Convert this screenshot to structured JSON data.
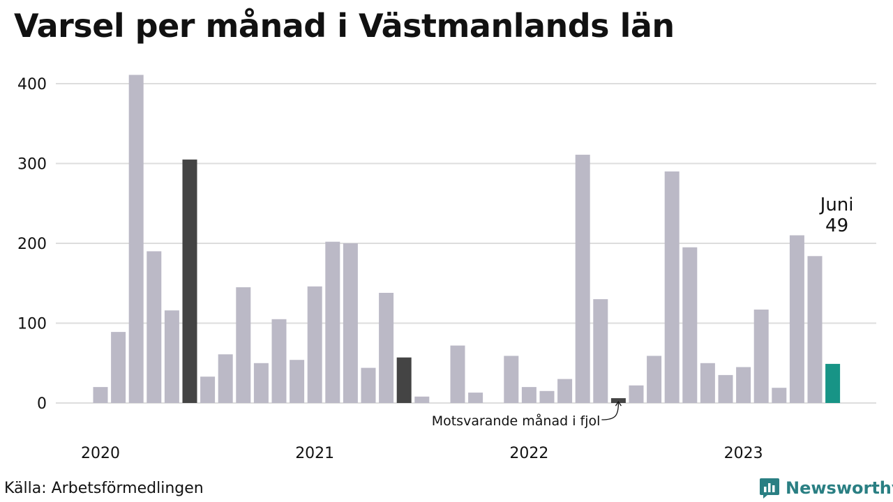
{
  "title": "Varsel per månad i Västmanlands län",
  "source": "Källa: Arbetsförmedlingen",
  "brand": {
    "name": "Newsworthy",
    "icon": "newsworthy-logo-icon",
    "color": "#2a7f83"
  },
  "chart_data": {
    "type": "bar",
    "title": "Varsel per månad i Västmanlands län",
    "xlabel": "",
    "ylabel": "",
    "ylim": [
      0,
      420
    ],
    "yticks": [
      "0",
      "100",
      "200",
      "300",
      "400"
    ],
    "grid": true,
    "x_year_labels": [
      "2020",
      "2021",
      "2022",
      "2023"
    ],
    "categories": [
      "2020-01",
      "2020-02",
      "2020-03",
      "2020-04",
      "2020-05",
      "2020-06",
      "2020-07",
      "2020-08",
      "2020-09",
      "2020-10",
      "2020-11",
      "2020-12",
      "2021-01",
      "2021-02",
      "2021-03",
      "2021-04",
      "2021-05",
      "2021-06",
      "2021-07",
      "2021-08",
      "2021-09",
      "2021-10",
      "2021-11",
      "2021-12",
      "2022-01",
      "2022-02",
      "2022-03",
      "2022-04",
      "2022-05",
      "2022-06",
      "2022-07",
      "2022-08",
      "2022-09",
      "2022-10",
      "2022-11",
      "2022-12",
      "2023-01",
      "2023-02",
      "2023-03",
      "2023-04",
      "2023-05",
      "2023-06"
    ],
    "values": [
      20,
      89,
      411,
      190,
      116,
      305,
      33,
      61,
      145,
      50,
      105,
      54,
      146,
      202,
      200,
      44,
      138,
      57,
      8,
      0,
      72,
      13,
      0,
      59,
      20,
      15,
      30,
      311,
      130,
      6,
      22,
      59,
      290,
      195,
      50,
      35,
      45,
      117,
      19,
      210,
      184,
      49
    ],
    "colors": {
      "default": "#bbb9c6",
      "june": "#444444",
      "current": "#179486"
    },
    "highlight_months": [
      "2020-06",
      "2021-06",
      "2022-06"
    ],
    "current_month": "2023-06",
    "annotations": {
      "current_label": "Juni",
      "current_value": "49",
      "previous_year_note": "Motsvarande månad i fjol"
    }
  }
}
